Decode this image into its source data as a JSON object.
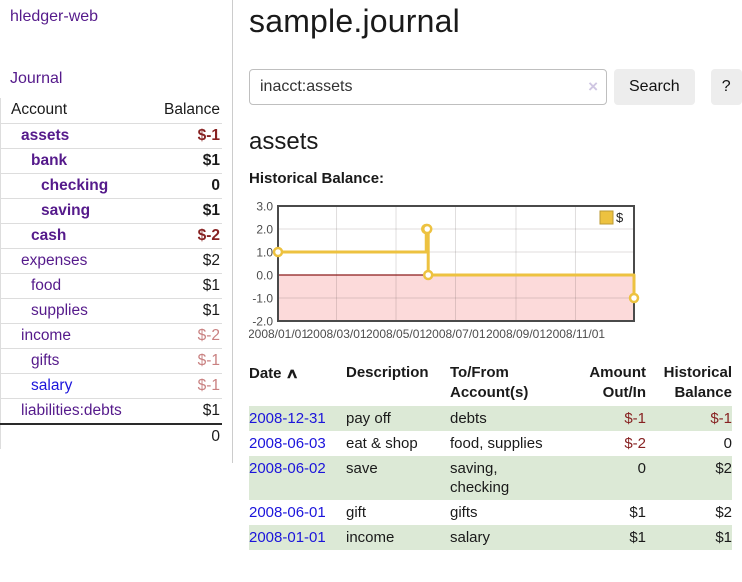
{
  "app": {
    "brand": "hledger-web"
  },
  "colors": {
    "accent_purple": "#551a8b",
    "link_blue": "#1b14db",
    "negative_strong": "#872222",
    "negative_light": "#c98181",
    "row_green": "#dce9d6",
    "button_bg": "#ededed"
  },
  "sidebar": {
    "nav": [
      {
        "label": "Journal"
      }
    ],
    "balance_table": {
      "headers": [
        "Account",
        "Balance"
      ],
      "rows": [
        {
          "account": "assets",
          "balance": "$-1",
          "indent": 1,
          "bold": true,
          "neg": "strong"
        },
        {
          "account": "bank",
          "balance": "$1",
          "indent": 2,
          "bold": true
        },
        {
          "account": "checking",
          "balance": "0",
          "indent": 3,
          "bold": true
        },
        {
          "account": "saving",
          "balance": "$1",
          "indent": 3,
          "bold": true
        },
        {
          "account": "cash",
          "balance": "$-2",
          "indent": 2,
          "bold": true,
          "neg": "strong"
        },
        {
          "account": "expenses",
          "balance": "$2",
          "indent": 1
        },
        {
          "account": "food",
          "balance": "$1",
          "indent": 2
        },
        {
          "account": "supplies",
          "balance": "$1",
          "indent": 2
        },
        {
          "account": "income",
          "balance": "$-2",
          "indent": 1,
          "neg": "light"
        },
        {
          "account": "gifts",
          "balance": "$-1",
          "indent": 2,
          "neg": "light"
        },
        {
          "account": "salary",
          "balance": "$-1",
          "indent": 2,
          "neg": "light",
          "blue": true
        },
        {
          "account": "liabilities:debts",
          "balance": "$1",
          "indent": 1
        }
      ],
      "total": "0"
    }
  },
  "header": {
    "title": "sample.journal"
  },
  "search": {
    "value": "inacct:assets",
    "clear_icon": "×",
    "button": "Search",
    "help_button": "?"
  },
  "account_page": {
    "title": "assets",
    "chart_label": "Historical Balance:"
  },
  "chart_data": {
    "type": "line",
    "style": "step",
    "title": "Historical Balance of assets",
    "series": [
      {
        "name": "$",
        "color": "#edc240",
        "points": [
          [
            "2008-01-01",
            1
          ],
          [
            "2008-06-01",
            2
          ],
          [
            "2008-06-02",
            2
          ],
          [
            "2008-06-03",
            0
          ],
          [
            "2008-12-31",
            -1
          ]
        ]
      }
    ],
    "x_range": [
      "2008-01-01",
      "2008-12-31"
    ],
    "x_ticks": [
      "2008/01/01",
      "2008/03/01",
      "2008/05/01",
      "2008/07/01",
      "2008/09/01",
      "2008/11/01"
    ],
    "y_ticks": [
      3.0,
      2.0,
      1.0,
      0.0,
      -1.0,
      -2.0
    ],
    "ylim": [
      -2,
      3
    ],
    "grid": true,
    "legend": {
      "label": "$",
      "position": "top-right"
    },
    "negative_region_color": "#fcdada",
    "zero_line_color": "#8b1a1a"
  },
  "register": {
    "sort_icon": "∧",
    "headers": [
      {
        "line1": "Date",
        "line2": "",
        "align": "left",
        "sorted": true
      },
      {
        "line1": "Description",
        "line2": "",
        "align": "left"
      },
      {
        "line1": "To/From",
        "line2": "Account(s)",
        "align": "left"
      },
      {
        "line1": "Amount",
        "line2": "Out/In",
        "align": "right"
      },
      {
        "line1": "Historical",
        "line2": "Balance",
        "align": "right"
      }
    ],
    "rows": [
      {
        "date": "2008-12-31",
        "description": "pay off",
        "accounts": "debts",
        "amount": "$-1",
        "balance": "$-1",
        "amount_neg": true,
        "balance_neg": true
      },
      {
        "date": "2008-06-03",
        "description": "eat & shop",
        "accounts": "food, supplies",
        "amount": "$-2",
        "balance": "0",
        "amount_neg": true
      },
      {
        "date": "2008-06-02",
        "description": "save",
        "accounts": "saving, checking",
        "amount": "0",
        "balance": "$2"
      },
      {
        "date": "2008-06-01",
        "description": "gift",
        "accounts": "gifts",
        "amount": "$1",
        "balance": "$2"
      },
      {
        "date": "2008-01-01",
        "description": "income",
        "accounts": "salary",
        "amount": "$1",
        "balance": "$1"
      }
    ]
  }
}
